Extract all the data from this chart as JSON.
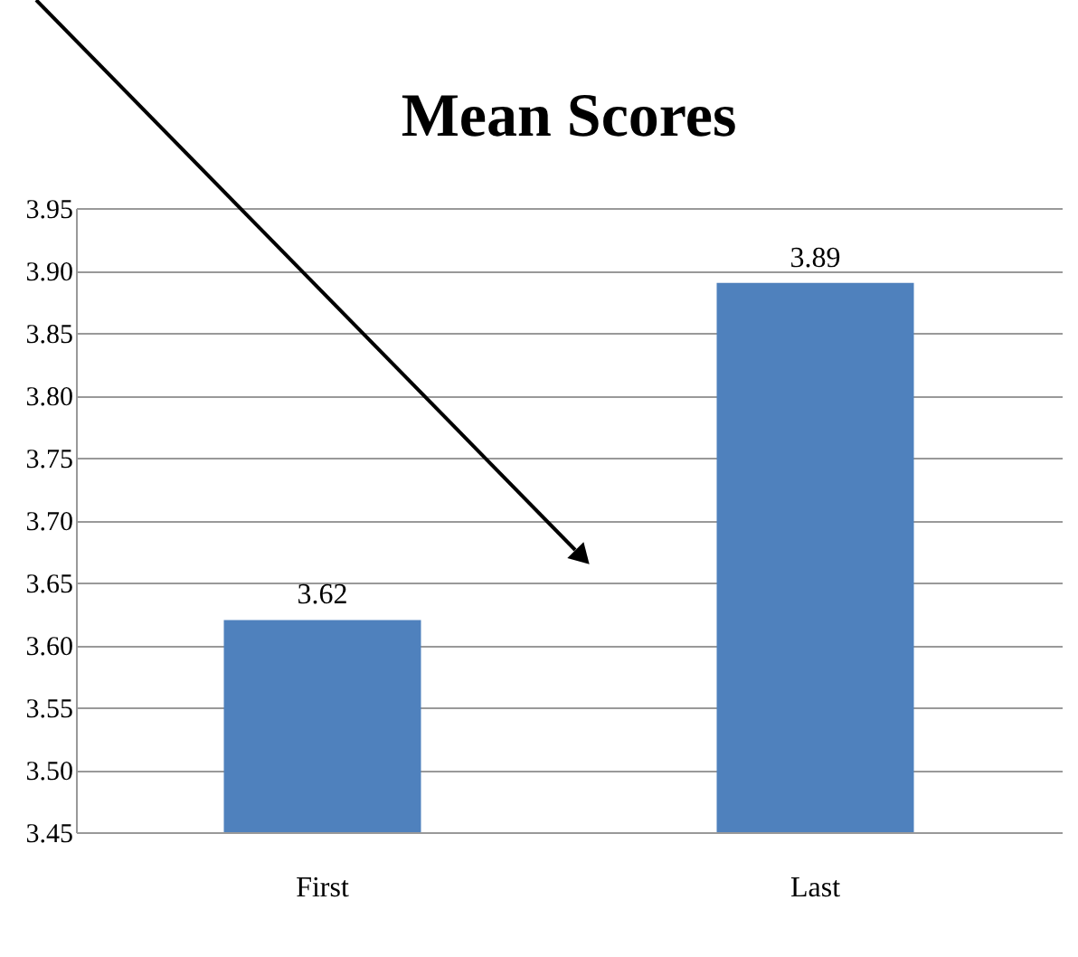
{
  "chart_data": {
    "type": "bar",
    "title": "Mean Scores",
    "categories": [
      "First",
      "Last"
    ],
    "values": [
      3.62,
      3.89
    ],
    "color": "#4f81bd",
    "ylim": [
      3.45,
      3.95
    ],
    "yticks": [
      3.45,
      {
        "value": 3.5,
        "label": "3.50"
      },
      3.55,
      {
        "value": 3.6,
        "label": "3.60"
      },
      3.65,
      {
        "value": 3.7,
        "label": "3.70"
      },
      3.75,
      {
        "value": 3.8,
        "label": "3.80"
      },
      3.85,
      {
        "value": 3.9,
        "label": "3.90"
      },
      3.95
    ],
    "grid": "y",
    "data_labels": true
  }
}
